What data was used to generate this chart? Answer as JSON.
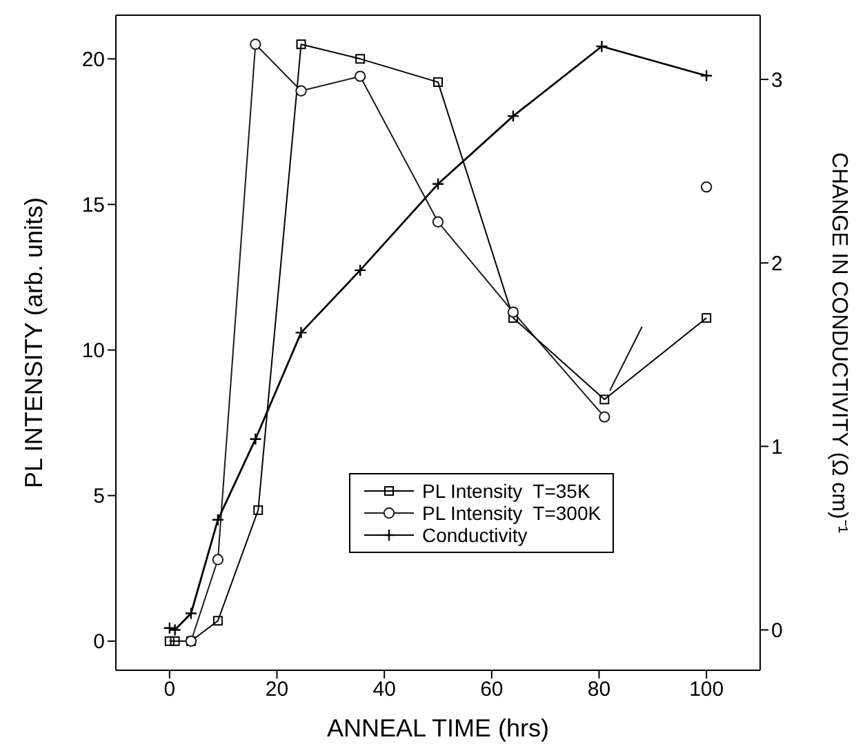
{
  "chart_data": {
    "type": "line",
    "xlabel": "ANNEAL TIME (hrs)",
    "ylabel": "PL INTENSITY (arb. units)",
    "y2label": "CHANGE IN CONDUCTIVITY (Ω cm)⁻¹",
    "xlim": [
      -10,
      110
    ],
    "xticks": [
      0,
      20,
      40,
      60,
      80,
      100
    ],
    "ylim": [
      -1,
      21.5
    ],
    "yticks": [
      0,
      5,
      10,
      15,
      20
    ],
    "y2lim": [
      -0.22,
      3.35
    ],
    "y2ticks": [
      0,
      1,
      2,
      3
    ],
    "legend": "bottom center",
    "grid": false,
    "line_style": "solid",
    "series": [
      {
        "name": "PL Intensity  T=35K",
        "color": "#000000",
        "marker": "square",
        "x": [
          0,
          1,
          4,
          9,
          16.5,
          24.5,
          35.5,
          50,
          64,
          81,
          100
        ],
        "values": [
          0,
          0,
          0,
          0.7,
          4.5,
          20.5,
          20,
          19.2,
          11.1,
          8.3,
          11.1
        ]
      },
      {
        "name": "PL Intensity  T=300K",
        "color": "#1a1a1a",
        "marker": "circle",
        "x": [
          4,
          9,
          16,
          24.5,
          35.5,
          50,
          64,
          81,
          88,
          100
        ],
        "values": [
          0,
          2.8,
          20.5,
          18.9,
          19.4,
          14.4,
          11.3,
          7.7,
          null,
          15.6
        ]
      },
      {
        "name": "Conductivity",
        "color": "#000000",
        "marker": "cross",
        "axis": "y2",
        "x": [
          0,
          1,
          4,
          9,
          16,
          24.5,
          35.5,
          50,
          64,
          80.5,
          100
        ],
        "values": [
          0.01,
          0,
          0.09,
          0.6,
          1.04,
          1.62,
          1.96,
          2.43,
          2.8,
          3.18,
          3.02
        ]
      },
      {
        "color": "#0d0d0d",
        "marker": "none",
        "x": [
          82,
          88
        ],
        "values": [
          8.6,
          10.8
        ]
      }
    ]
  }
}
